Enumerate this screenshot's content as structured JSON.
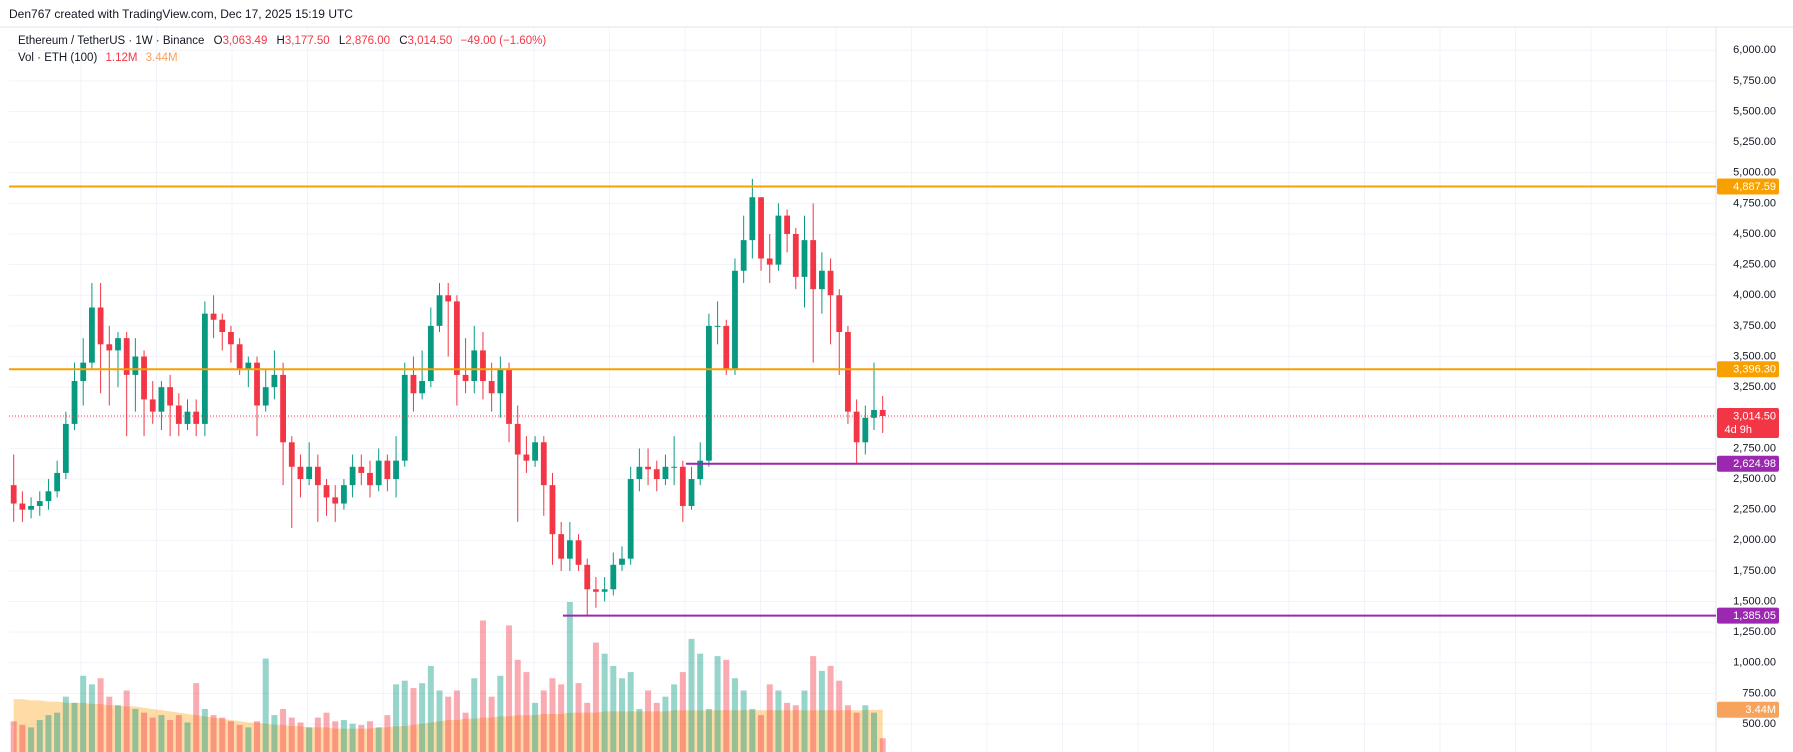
{
  "chart_data": {
    "type": "candlestick",
    "title": "Den767 created with TradingView.com, Dec 17, 2025 15:19 UTC",
    "legend": {
      "symbol": "Ethereum / TetherUS · 1W · Binance",
      "o_key": "O",
      "o": "3,063.49",
      "h_key": "H",
      "h": "3,177.50",
      "l_key": "L",
      "l": "2,876.00",
      "c_key": "C",
      "c": "3,014.50",
      "change": "−49.00 (−1.60%)"
    },
    "volume_legend": {
      "name": "Vol · ETH",
      "length": "(100)",
      "volume": "1.12M",
      "ma": "3.44M"
    },
    "up_color": "#089981",
    "down_color": "#f23645",
    "ma_color": "#ff9800",
    "open": [
      2450,
      2300,
      2250,
      2280,
      2320,
      2400,
      2550,
      2950,
      3300,
      3450,
      3900,
      3600,
      3550,
      3650,
      3350,
      3500,
      3150,
      3050,
      3250,
      3100,
      2950,
      3050,
      2950,
      3850,
      3800,
      3700,
      3600,
      3400,
      3450,
      3100,
      3250,
      3350,
      2800,
      2600,
      2500,
      2600,
      2450,
      2350,
      2300,
      2450,
      2600,
      2550,
      2450,
      2650,
      2500,
      2650,
      3350,
      3200,
      3300,
      3750,
      4000,
      3950,
      3350,
      3300,
      3550,
      3300,
      3200,
      3400,
      2950,
      2700,
      2650,
      2800,
      2450,
      2050,
      1850,
      2000,
      1800,
      1600,
      1580,
      1600,
      1800,
      1850,
      2500,
      2600,
      2580,
      2500,
      2600,
      2600,
      2280,
      2500,
      2650,
      3750,
      3750,
      3400,
      4200,
      4450,
      4800,
      4300,
      4250,
      4650,
      4500,
      4150,
      4450,
      4050,
      4200,
      4000,
      3700,
      3050,
      2800,
      3000,
      3063.49
    ],
    "high": [
      2700,
      2400,
      2350,
      2400,
      2500,
      2650,
      3050,
      3450,
      3650,
      4100,
      4100,
      3750,
      3700,
      3700,
      3650,
      3550,
      3300,
      3300,
      3350,
      3200,
      3150,
      3150,
      3950,
      4000,
      3850,
      3750,
      3650,
      3500,
      3500,
      3400,
      3550,
      3450,
      2850,
      2700,
      2800,
      2700,
      2500,
      2450,
      2500,
      2700,
      2700,
      2650,
      2750,
      2700,
      2850,
      3450,
      3500,
      3550,
      3900,
      4100,
      4100,
      4000,
      3650,
      3750,
      3700,
      3450,
      3500,
      3450,
      3100,
      2850,
      2850,
      2850,
      2550,
      2150,
      2150,
      2050,
      1850,
      1700,
      1700,
      1900,
      1950,
      2600,
      2750,
      2750,
      2650,
      2700,
      2850,
      2650,
      2600,
      2800,
      3850,
      3950,
      3800,
      4300,
      4650,
      4950,
      4800,
      4500,
      4750,
      4700,
      4550,
      4650,
      4750,
      4350,
      4300,
      4050,
      3750,
      3150,
      3100,
      3450,
      3177.5
    ],
    "low": [
      2150,
      2150,
      2180,
      2200,
      2250,
      2350,
      2500,
      2900,
      3100,
      3400,
      3200,
      3100,
      3250,
      2850,
      3050,
      2850,
      2950,
      2900,
      2850,
      2850,
      2900,
      2850,
      2850,
      3650,
      3550,
      3450,
      3350,
      3250,
      2850,
      3050,
      3150,
      2450,
      2100,
      2350,
      2450,
      2150,
      2200,
      2150,
      2250,
      2350,
      2450,
      2350,
      2400,
      2400,
      2350,
      2600,
      3050,
      3150,
      3250,
      3700,
      3500,
      3100,
      3200,
      3200,
      3150,
      3050,
      3000,
      2800,
      2150,
      2550,
      2600,
      2200,
      1800,
      1750,
      1750,
      1750,
      1385.05,
      1450,
      1500,
      1550,
      1750,
      1800,
      2400,
      2450,
      2400,
      2450,
      2450,
      2150,
      2250,
      2450,
      2600,
      3600,
      3350,
      3350,
      4100,
      4300,
      4200,
      4100,
      4200,
      4350,
      4050,
      3900,
      3450,
      3850,
      3600,
      3350,
      2950,
      2624.98,
      2700,
      2900,
      2876
    ],
    "close": [
      2300,
      2250,
      2280,
      2320,
      2400,
      2550,
      2950,
      3300,
      3450,
      3900,
      3600,
      3550,
      3650,
      3350,
      3500,
      3150,
      3050,
      3250,
      3100,
      2950,
      3050,
      2950,
      3850,
      3800,
      3700,
      3600,
      3400,
      3450,
      3100,
      3250,
      3350,
      2800,
      2600,
      2500,
      2600,
      2450,
      2350,
      2300,
      2450,
      2600,
      2550,
      2450,
      2650,
      2500,
      2650,
      3350,
      3200,
      3300,
      3750,
      4000,
      3950,
      3350,
      3300,
      3550,
      3300,
      3200,
      3400,
      2950,
      2700,
      2650,
      2800,
      2450,
      2050,
      1850,
      2000,
      1800,
      1600,
      1580,
      1600,
      1800,
      1850,
      2500,
      2600,
      2580,
      2500,
      2600,
      2600,
      2280,
      2500,
      2650,
      3750,
      3750,
      3400,
      4200,
      4450,
      4800,
      4300,
      4250,
      4650,
      4500,
      4150,
      4450,
      4050,
      4200,
      4000,
      3700,
      3050,
      2800,
      3000,
      3063.49,
      3014.5
    ],
    "volumes": [
      2.5,
      2.2,
      2.0,
      2.6,
      3.0,
      3.2,
      4.5,
      4.0,
      6.2,
      5.5,
      6.0,
      4.5,
      3.8,
      5.0,
      3.5,
      3.2,
      2.8,
      3.0,
      2.6,
      3.0,
      2.4,
      5.6,
      3.5,
      3.0,
      2.8,
      2.5,
      2.2,
      2.0,
      2.5,
      7.6,
      3.0,
      3.5,
      2.8,
      2.4,
      2.0,
      2.8,
      3.2,
      2.5,
      2.6,
      2.3,
      2.2,
      2.5,
      2.0,
      3.0,
      5.5,
      5.8,
      5.2,
      5.6,
      7.0,
      5.0,
      4.5,
      5.0,
      3.2,
      6.0,
      10.7,
      4.5,
      6.2,
      10.3,
      7.5,
      6.5,
      4.0,
      5.0,
      6.0,
      5.5,
      12.2,
      5.6,
      4.0,
      8.9,
      8.0,
      7.0,
      6.0,
      6.5,
      3.5,
      5.0,
      4.0,
      4.5,
      5.5,
      6.5,
      9.2,
      8.0,
      3.5,
      7.8,
      7.5,
      6.0,
      5.0,
      3.5,
      3.0,
      5.5,
      5.0,
      4.0,
      3.8,
      5.0,
      7.8,
      6.6,
      7.0,
      5.8,
      3.8,
      3.2,
      3.8,
      3.2,
      1.12
    ],
    "volume_ma": [
      4.3,
      4.3,
      4.2,
      4.2,
      4.1,
      4.1,
      4.0,
      4.0,
      4.0,
      3.9,
      3.9,
      3.8,
      3.8,
      3.7,
      3.7,
      3.6,
      3.5,
      3.4,
      3.3,
      3.2,
      3.1,
      3.0,
      2.9,
      2.8,
      2.7,
      2.6,
      2.5,
      2.4,
      2.4,
      2.3,
      2.2,
      2.2,
      2.1,
      2.1,
      2.0,
      2.0,
      2.0,
      1.9,
      1.9,
      1.9,
      1.9,
      1.9,
      2.0,
      2.0,
      2.1,
      2.1,
      2.2,
      2.3,
      2.4,
      2.5,
      2.6,
      2.6,
      2.7,
      2.7,
      2.8,
      2.8,
      2.9,
      2.9,
      3.0,
      3.0,
      3.0,
      3.1,
      3.1,
      3.1,
      3.2,
      3.2,
      3.2,
      3.2,
      3.3,
      3.3,
      3.3,
      3.3,
      3.3,
      3.3,
      3.3,
      3.3,
      3.4,
      3.4,
      3.4,
      3.4,
      3.4,
      3.4,
      3.4,
      3.4,
      3.4,
      3.4,
      3.4,
      3.4,
      3.4,
      3.4,
      3.4,
      3.4,
      3.4,
      3.4,
      3.4,
      3.4,
      3.4,
      3.4,
      3.4,
      3.44,
      3.44
    ],
    "volume_ma_label": {
      "value": 3.44,
      "label": "3.44M"
    },
    "ylim": [
      272,
      6410
    ],
    "yticks": [
      {
        "value": 500,
        "label": "500.00"
      },
      {
        "value": 750,
        "label": "750.00"
      },
      {
        "value": 1000,
        "label": "1,000.00"
      },
      {
        "value": 1250,
        "label": "1,250.00"
      },
      {
        "value": 1500,
        "label": "1,500.00"
      },
      {
        "value": 1750,
        "label": "1,750.00"
      },
      {
        "value": 2000,
        "label": "2,000.00"
      },
      {
        "value": 2250,
        "label": "2,250.00"
      },
      {
        "value": 2500,
        "label": "2,500.00"
      },
      {
        "value": 2750,
        "label": "2,750.00"
      },
      {
        "value": 3000,
        "label": "3,000.00"
      },
      {
        "value": 3250,
        "label": "3,250.00"
      },
      {
        "value": 3500,
        "label": "3,500.00"
      },
      {
        "value": 3750,
        "label": "3,750.00"
      },
      {
        "value": 4000,
        "label": "4,000.00"
      },
      {
        "value": 4250,
        "label": "4,250.00"
      },
      {
        "value": 4500,
        "label": "4,500.00"
      },
      {
        "value": 4750,
        "label": "4,750.00"
      },
      {
        "value": 5000,
        "label": "5,000.00"
      },
      {
        "value": 5250,
        "label": "5,250.00"
      },
      {
        "value": 5500,
        "label": "5,500.00"
      },
      {
        "value": 5750,
        "label": "5,750.00"
      },
      {
        "value": 6000,
        "label": "6,000.00"
      }
    ],
    "grid": true,
    "levels": [
      {
        "value": 4887.59,
        "label": "4,887.59",
        "color": "#f7a000"
      },
      {
        "value": 3396.3,
        "label": "3,396.30",
        "color": "#f7a000"
      },
      {
        "value": 2624.98,
        "label": "2,624.98",
        "color": "#9c27b0"
      },
      {
        "value": 1385.05,
        "label": "1,385.05",
        "color": "#9c27b0"
      }
    ],
    "last_price": {
      "value": 3014.5,
      "label": "3,014.50",
      "countdown": "4d 9h",
      "color": "#f23645"
    }
  }
}
